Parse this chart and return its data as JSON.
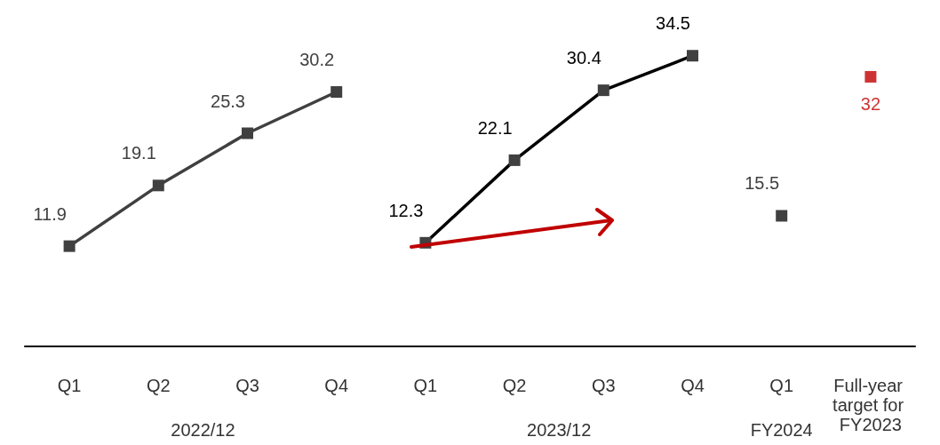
{
  "chart_data": {
    "type": "line",
    "categories": [
      "Q1",
      "Q2",
      "Q3",
      "Q4",
      "Q1",
      "Q2",
      "Q3",
      "Q4",
      "Q1",
      "Full-year target for FY2023"
    ],
    "series": [
      {
        "color": "#404040",
        "values": [
          11.9,
          19.1,
          25.3,
          30.2,
          null,
          null,
          null,
          null,
          null,
          null
        ]
      },
      {
        "color": "#000000",
        "values": [
          null,
          null,
          null,
          null,
          12.3,
          22.1,
          30.4,
          34.5,
          null,
          null
        ]
      },
      {
        "color": "#404040",
        "values": [
          null,
          null,
          null,
          null,
          null,
          null,
          null,
          null,
          15.5,
          null
        ]
      },
      {
        "type": "scatter",
        "color": "#c00000",
        "values": [
          null,
          null,
          null,
          null,
          null,
          null,
          null,
          null,
          null,
          32
        ]
      }
    ],
    "annotations": [
      "2022/12",
      "2023/12",
      "FY2024"
    ],
    "data_labels": true,
    "marker": "square",
    "line_style": "solid",
    "tick_labels": "x"
  }
}
